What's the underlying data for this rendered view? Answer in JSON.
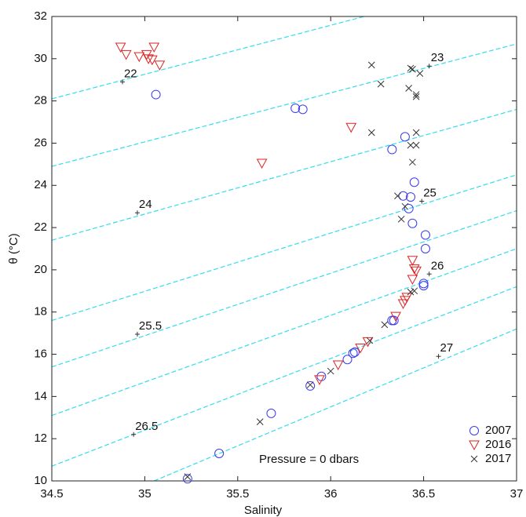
{
  "chart_data": {
    "type": "scatter",
    "xlabel": "Salinity",
    "ylabel": "θ (°C)",
    "xlim": [
      34.5,
      37
    ],
    "ylim": [
      10,
      32
    ],
    "xticks": [
      34.5,
      35,
      35.5,
      36,
      36.5,
      37
    ],
    "yticks": [
      10,
      12,
      14,
      16,
      18,
      20,
      22,
      24,
      26,
      28,
      30,
      32
    ],
    "annotation": "Pressure = 0 dbars",
    "legend": "lower right",
    "contour_color": "#33ddee",
    "contours": [
      {
        "label": "22",
        "x": [
          34.5,
          36.18
        ],
        "y": [
          28.1,
          32
        ],
        "marker": [
          34.88,
          28.9
        ]
      },
      {
        "label": "23",
        "x": [
          34.5,
          37
        ],
        "y": [
          24.9,
          30.7
        ],
        "marker": [
          36.53,
          29.65
        ]
      },
      {
        "label": "24",
        "x": [
          34.5,
          37
        ],
        "y": [
          21.4,
          27.6
        ],
        "marker": [
          34.96,
          22.7
        ]
      },
      {
        "label": "25",
        "x": [
          34.5,
          37
        ],
        "y": [
          17.6,
          24.5
        ],
        "marker": [
          36.49,
          23.25
        ]
      },
      {
        "label": "25.5",
        "x": [
          34.5,
          37
        ],
        "y": [
          15.4,
          22.8
        ],
        "marker": [
          34.96,
          16.95
        ]
      },
      {
        "label": "26",
        "x": [
          34.5,
          37
        ],
        "y": [
          13.1,
          21.0
        ],
        "marker": [
          36.53,
          19.8
        ]
      },
      {
        "label": "26.5",
        "x": [
          34.5,
          37
        ],
        "y": [
          10.7,
          19.2
        ],
        "marker": [
          34.94,
          12.2
        ]
      },
      {
        "label": "27",
        "x": [
          35.05,
          37
        ],
        "y": [
          10,
          17.2
        ],
        "marker": [
          36.58,
          15.9
        ]
      }
    ],
    "series": [
      {
        "name": "2007",
        "color": "#3a3aee",
        "marker": "circle",
        "x": [
          35.06,
          35.81,
          35.85,
          36.33,
          36.4,
          36.45,
          36.39,
          36.43,
          36.42,
          36.44,
          36.51,
          36.51,
          36.5,
          36.5,
          36.34,
          36.33,
          36.13,
          36.12,
          36.09,
          35.95,
          35.89,
          35.68,
          35.4,
          35.23
        ],
        "y": [
          28.3,
          27.65,
          27.6,
          25.7,
          26.3,
          24.15,
          23.5,
          23.45,
          22.9,
          22.2,
          21.65,
          21.0,
          19.35,
          19.25,
          17.6,
          17.6,
          16.1,
          16.05,
          15.75,
          14.95,
          14.5,
          13.2,
          11.3,
          10.1
        ]
      },
      {
        "name": "2016",
        "color": "#dd2222",
        "marker": "triangle",
        "x": [
          34.87,
          34.9,
          34.97,
          35.01,
          35.02,
          35.04,
          35.05,
          35.08,
          35.63,
          36.11,
          36.44,
          36.45,
          36.46,
          36.44,
          36.41,
          36.4,
          36.39,
          36.35,
          36.2,
          36.16,
          36.04,
          35.94
        ],
        "y": [
          30.55,
          30.2,
          30.1,
          30.2,
          30.0,
          29.95,
          30.55,
          29.7,
          25.05,
          26.75,
          20.45,
          20.05,
          19.95,
          19.55,
          18.7,
          18.55,
          18.4,
          17.8,
          16.6,
          16.3,
          15.5,
          14.8
        ]
      },
      {
        "name": "2017",
        "color": "#333333",
        "marker": "x",
        "x": [
          36.22,
          36.27,
          36.43,
          36.44,
          36.48,
          36.42,
          36.46,
          36.46,
          36.22,
          36.43,
          36.46,
          36.46,
          36.44,
          36.36,
          36.4,
          36.38,
          36.45,
          36.43,
          36.29,
          36.21,
          36.0,
          35.89,
          35.62,
          35.23
        ],
        "y": [
          29.7,
          28.8,
          29.55,
          29.5,
          29.3,
          28.6,
          28.3,
          28.2,
          26.5,
          25.9,
          26.5,
          25.9,
          25.1,
          23.5,
          23.0,
          22.4,
          19.0,
          18.95,
          17.4,
          16.65,
          15.2,
          14.55,
          12.8,
          10.2
        ]
      }
    ]
  }
}
